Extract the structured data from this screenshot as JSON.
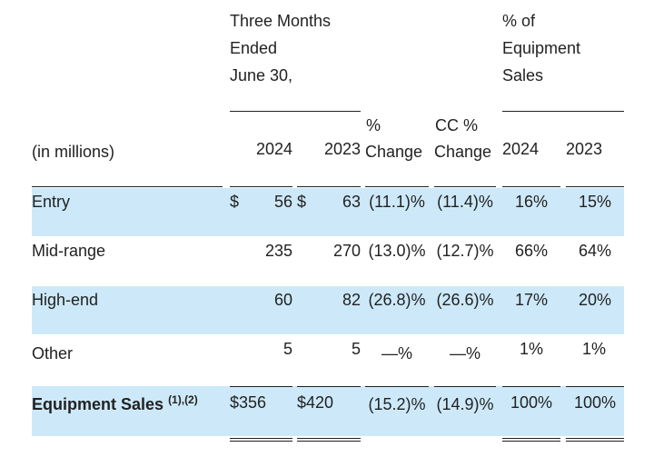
{
  "header": {
    "period_line1": "Three Months",
    "period_line2": "Ended",
    "period_line3": "June 30,",
    "pct_sales_line1": "% of",
    "pct_sales_line2": "Equipment",
    "pct_sales_line3": "Sales",
    "units": "(in millions)",
    "col_2024": "2024",
    "col_2023": "2023",
    "pct_change_line1": "%",
    "pct_change_line2": "Change",
    "cc_change_line1": "CC %",
    "cc_change_line2": "Change",
    "pct_2024": "2024",
    "pct_2023": "2023"
  },
  "rows": [
    {
      "label": "Entry",
      "cur1": "$",
      "v2024": "56",
      "cur2": "$",
      "v2023": "63",
      "pct_change": "(11.1)%",
      "cc_change": "(11.4)%",
      "share_2024": "16%",
      "share_2023": "15%"
    },
    {
      "label": "Mid-range",
      "cur1": "",
      "v2024": "235",
      "cur2": "",
      "v2023": "270",
      "pct_change": "(13.0)%",
      "cc_change": "(12.7)%",
      "share_2024": "66%",
      "share_2023": "64%"
    },
    {
      "label": "High-end",
      "cur1": "",
      "v2024": "60",
      "cur2": "",
      "v2023": "82",
      "pct_change": "(26.8)%",
      "cc_change": "(26.6)%",
      "share_2024": "17%",
      "share_2023": "20%"
    },
    {
      "label": "Other",
      "cur1": "",
      "v2024": "5",
      "cur2": "",
      "v2023": "5",
      "pct_change": "—%",
      "cc_change": "—%",
      "share_2024": "1%",
      "share_2023": "1%"
    }
  ],
  "total": {
    "label": "Equipment Sales",
    "footnote": "(1),(2)",
    "v2024": "$356",
    "v2023": "$420",
    "pct_change": "(15.2)%",
    "cc_change": "(14.9)%",
    "share_2024": "100%",
    "share_2023": "100%"
  },
  "colors": {
    "band": "#cde9f9",
    "text": "#222222"
  }
}
